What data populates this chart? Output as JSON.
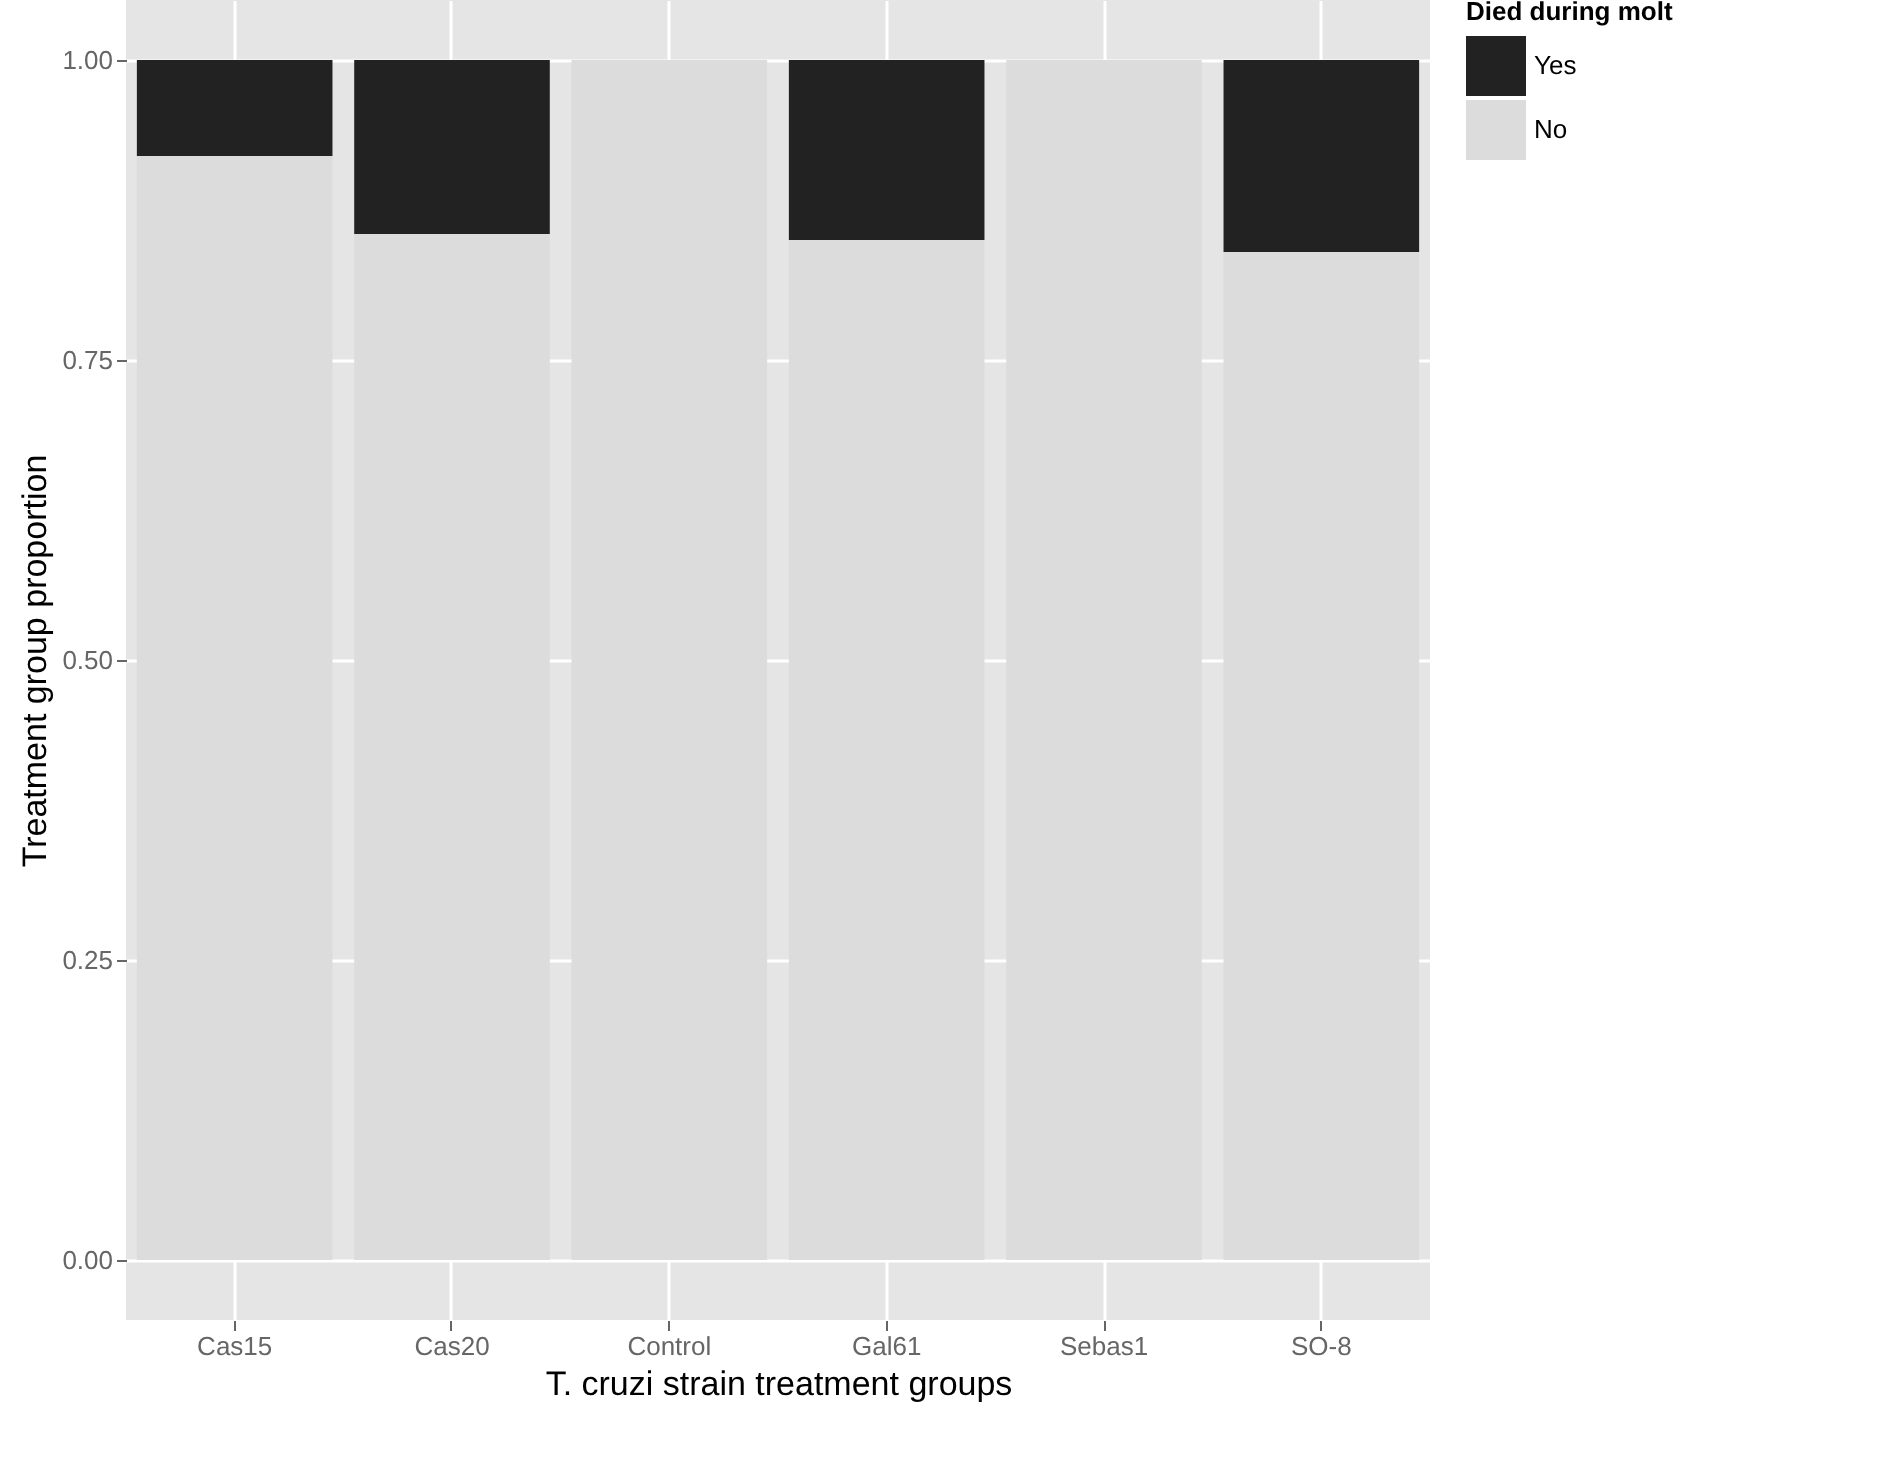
{
  "chart_data": {
    "type": "bar",
    "stacked": true,
    "xlabel": "T. cruzi strain treatment groups",
    "ylabel": "Treatment group proportion",
    "legend_title": "Died during molt",
    "categories": [
      "Cas15",
      "Cas20",
      "Control",
      "Gal61",
      "Sebas1",
      "SO-8"
    ],
    "series": [
      {
        "name": "No",
        "color": "#dcdcdc",
        "values": [
          0.92,
          0.855,
          1,
          0.85,
          1,
          0.84
        ]
      },
      {
        "name": "Yes",
        "color": "#222222",
        "values": [
          0.08,
          0.145,
          0,
          0.15,
          0,
          0.16
        ]
      }
    ],
    "ylim": [
      -0.05,
      1.05
    ],
    "yticks": [
      {
        "value": 0,
        "label": "0.00"
      },
      0.25,
      {
        "value": 0.5,
        "label": "0.50"
      },
      0.75,
      {
        "value": 1,
        "label": "1.00"
      }
    ],
    "grid": true,
    "legend": "right"
  }
}
